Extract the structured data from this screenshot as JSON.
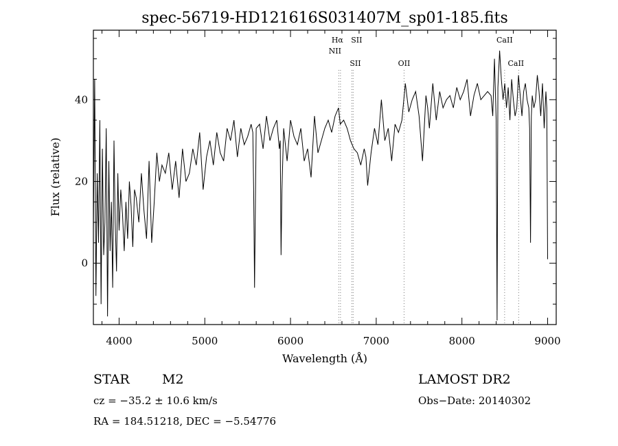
{
  "chart_data": {
    "type": "line",
    "title": "spec-56719-HD121616S031407M_sp01-185.fits",
    "xlabel": "Wavelength (Å)",
    "ylabel": "Flux (relative)",
    "xlim": [
      3700,
      9100
    ],
    "ylim": [
      -15,
      57
    ],
    "x_ticks": [
      4000,
      5000,
      6000,
      7000,
      8000,
      9000
    ],
    "y_ticks": [
      0,
      20,
      40
    ],
    "grid": false,
    "spectral_lines": [
      {
        "label": "Hα",
        "wavelength": 6563
      },
      {
        "label": "NII",
        "wavelength": 6583
      },
      {
        "label": "SII",
        "wavelength": 6716
      },
      {
        "label": "SII",
        "wavelength": 6731
      },
      {
        "label": "OII",
        "wavelength": 7325
      },
      {
        "label": "CaII",
        "wavelength": 8498
      },
      {
        "label": "CaII",
        "wavelength": 8662
      }
    ],
    "series": [
      {
        "x": [
          3700,
          3715,
          3730,
          3745,
          3760,
          3775,
          3790,
          3805,
          3820,
          3835,
          3850,
          3865,
          3880,
          3895,
          3910,
          3925,
          3940,
          3955,
          3970,
          3985,
          4000,
          4020,
          4040,
          4060,
          4080,
          4100,
          4120,
          4140,
          4160,
          4180,
          4200,
          4230,
          4260,
          4290,
          4320,
          4350,
          4380,
          4410,
          4440,
          4470,
          4500,
          4540,
          4580,
          4620,
          4660,
          4700,
          4740,
          4780,
          4820,
          4860,
          4900,
          4940,
          4980,
          5020,
          5060,
          5100,
          5140,
          5180,
          5220,
          5260,
          5300,
          5340,
          5380,
          5420,
          5460,
          5500,
          5540,
          5560,
          5570,
          5580,
          5600,
          5640,
          5680,
          5720,
          5760,
          5800,
          5840,
          5870,
          5880,
          5890,
          5900,
          5920,
          5960,
          6000,
          6040,
          6080,
          6120,
          6160,
          6200,
          6240,
          6280,
          6320,
          6360,
          6400,
          6440,
          6480,
          6520,
          6560,
          6580,
          6620,
          6660,
          6700,
          6740,
          6780,
          6820,
          6860,
          6880,
          6900,
          6940,
          6980,
          7020,
          7060,
          7100,
          7140,
          7180,
          7220,
          7260,
          7300,
          7340,
          7380,
          7420,
          7460,
          7500,
          7540,
          7580,
          7600,
          7620,
          7660,
          7700,
          7740,
          7780,
          7820,
          7860,
          7900,
          7940,
          7980,
          8020,
          8060,
          8100,
          8140,
          8180,
          8220,
          8260,
          8300,
          8340,
          8360,
          8380,
          8390,
          8400,
          8410,
          8420,
          8440,
          8460,
          8480,
          8500,
          8520,
          8540,
          8560,
          8580,
          8600,
          8620,
          8640,
          8660,
          8680,
          8700,
          8720,
          8740,
          8760,
          8780,
          8790,
          8800,
          8810,
          8820,
          8840,
          8860,
          8880,
          8900,
          8920,
          8940,
          8960,
          8980,
          8990,
          9000
        ],
        "y": [
          8,
          45,
          -8,
          22,
          5,
          35,
          -10,
          28,
          2,
          10,
          33,
          -13,
          25,
          3,
          15,
          -6,
          30,
          10,
          -2,
          22,
          8,
          18,
          12,
          3,
          15,
          6,
          20,
          14,
          4,
          18,
          16,
          10,
          22,
          13,
          6,
          25,
          5,
          15,
          27,
          20,
          24,
          22,
          27,
          18,
          25,
          16,
          28,
          20,
          22,
          28,
          24,
          32,
          18,
          26,
          30,
          24,
          32,
          27,
          25,
          33,
          30,
          35,
          26,
          33,
          29,
          31,
          34,
          32,
          18,
          -6,
          33,
          34,
          28,
          36,
          30,
          33,
          35,
          28,
          30,
          2,
          18,
          33,
          25,
          35,
          31,
          29,
          33,
          25,
          28,
          21,
          36,
          27,
          30,
          33,
          35,
          32,
          36,
          38,
          34,
          35,
          33,
          30,
          28,
          27,
          24,
          28,
          26,
          19,
          27,
          33,
          29,
          40,
          30,
          33,
          25,
          34,
          32,
          35,
          44,
          37,
          40,
          42,
          36,
          25,
          41,
          38,
          33,
          44,
          35,
          42,
          38,
          40,
          41,
          38,
          43,
          40,
          42,
          45,
          36,
          41,
          44,
          40,
          41,
          42,
          41,
          36,
          50,
          42,
          35,
          -14,
          43,
          52,
          45,
          40,
          44,
          38,
          43,
          35,
          45,
          40,
          36,
          38,
          46,
          41,
          36,
          42,
          44,
          40,
          38,
          33,
          5,
          36,
          41,
          38,
          40,
          46,
          42,
          36,
          44,
          33,
          42,
          38,
          1
        ]
      }
    ],
    "annotations": {
      "object_class": "STAR",
      "subclass": "M2",
      "survey": "LAMOST DR2",
      "redshift": "cz = −35.2 ± 10.6 km/s",
      "obs_date": "Obs−Date: 20140302",
      "position": "RA = 184.51218, DEC =  −5.54776"
    }
  }
}
